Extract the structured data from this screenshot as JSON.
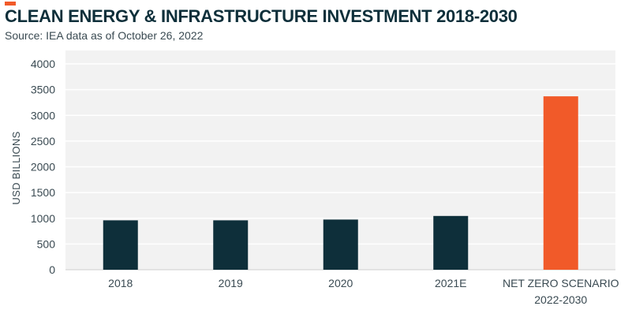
{
  "header": {
    "title": "CLEAN ENERGY & INFRASTRUCTURE INVESTMENT 2018-2030",
    "subtitle": "Source: IEA data as of October 26, 2022"
  },
  "colors": {
    "accent": "#f15a29",
    "bar_default": "#0e2f3a",
    "bar_highlight": "#f15a29",
    "plot_background": "#f2f2f2",
    "gridline": "#ffffff"
  },
  "chart_data": {
    "type": "bar",
    "title": "CLEAN ENERGY & INFRASTRUCTURE INVESTMENT 2018-2030",
    "subtitle": "Source: IEA data as of October 26, 2022",
    "xlabel": "",
    "ylabel": "USD BILLIONS",
    "ylim": [
      0,
      4000
    ],
    "yticks": [
      0,
      500,
      1000,
      1500,
      2000,
      2500,
      3000,
      3500,
      4000
    ],
    "grid": true,
    "categories": [
      {
        "lines": [
          "2018"
        ]
      },
      {
        "lines": [
          "2019"
        ]
      },
      {
        "lines": [
          "2020"
        ]
      },
      {
        "lines": [
          "2021E"
        ]
      },
      {
        "lines": [
          "NET ZERO SCENARIO",
          "2022-2030"
        ]
      }
    ],
    "values": [
      960,
      960,
      975,
      1045,
      3370
    ],
    "highlight_index": 4
  }
}
